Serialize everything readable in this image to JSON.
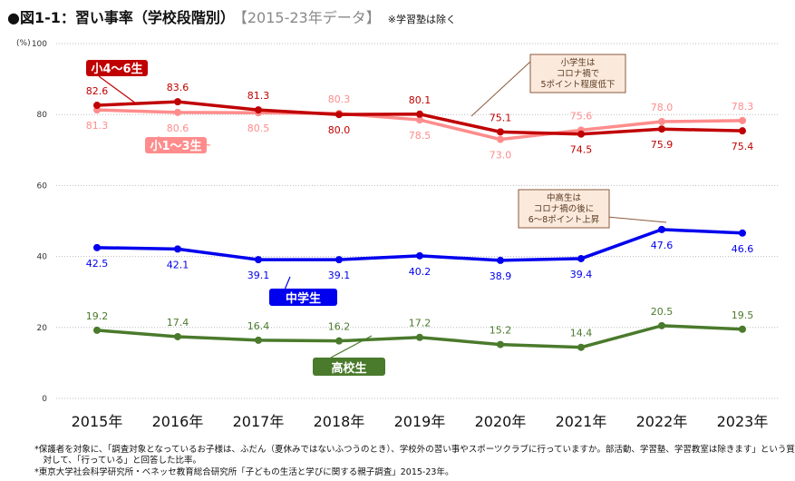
{
  "title": "●図1-1：習い事率（学校段階別）",
  "subtitle": "【2015-23年データ】",
  "title_note": "※学習塾は除く",
  "footnotes": [
    "*保護者を対象に、「調査対象となっているお子様は、ふだん（夏休みではないふつうのとき）、学校外の習い事やスポーツクラブに行っていますか。部活動、学習塾、学習教室は除きます」という質問に",
    "　対して、「行っている」と回答した比率。",
    "*東京大学社会科学研究所・ベネッセ教育総合研究所「子どもの生活と学びに関する親子調査」2015-23年。"
  ],
  "chart_data": {
    "type": "line",
    "unit_label": "(%)",
    "categories": [
      "2015年",
      "2016年",
      "2017年",
      "2018年",
      "2019年",
      "2020年",
      "2021年",
      "2022年",
      "2023年"
    ],
    "ylim": [
      0,
      100
    ],
    "yticks": [
      0,
      20,
      40,
      60,
      80,
      100
    ],
    "grid": true,
    "series": [
      {
        "name": "小4〜6生",
        "color": "#c00000",
        "values": [
          82.6,
          83.6,
          81.3,
          80.0,
          80.1,
          75.1,
          74.5,
          75.9,
          75.4
        ]
      },
      {
        "name": "小1〜3生",
        "color": "#ff8c8c",
        "values": [
          81.3,
          80.6,
          80.5,
          80.3,
          78.5,
          73.0,
          75.6,
          78.0,
          78.3
        ]
      },
      {
        "name": "中学生",
        "color": "#0000ee",
        "values": [
          42.5,
          42.1,
          39.1,
          39.1,
          40.2,
          38.9,
          39.4,
          47.6,
          46.6
        ]
      },
      {
        "name": "高校生",
        "color": "#4a7a2c",
        "values": [
          19.2,
          17.4,
          16.4,
          16.2,
          17.2,
          15.2,
          14.4,
          20.5,
          19.5
        ]
      }
    ],
    "annotations": [
      "小学生は\nコロナ禍で\n5ポイント程度低下",
      "中高生は\nコロナ禍の後に\n6〜8ポイント上昇"
    ]
  }
}
